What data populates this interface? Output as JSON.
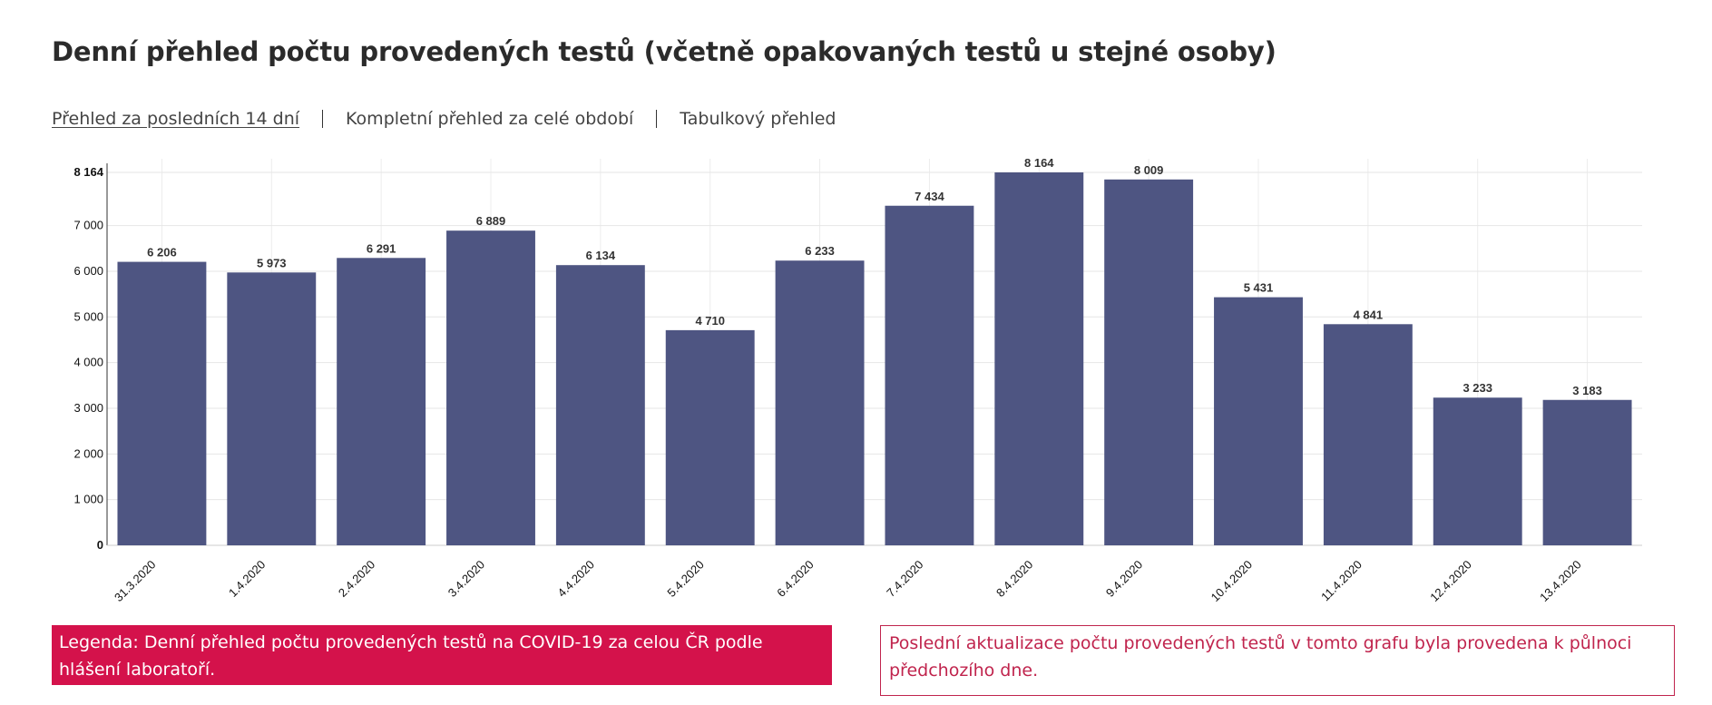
{
  "page": {
    "title": "Denní přehled počtu provedených testů (včetně opakovaných testů u stejné osoby)"
  },
  "tabs": [
    {
      "label": "Přehled za posledních 14 dní",
      "active": true
    },
    {
      "label": "Kompletní přehled za celé období",
      "active": false
    },
    {
      "label": "Tabulkový přehled",
      "active": false
    }
  ],
  "legend": {
    "text": "Legenda: Denní přehled počtu provedených testů na COVID-19 za celou ČR podle hlášení laboratoří."
  },
  "update_note": {
    "text": "Poslední aktualizace počtu provedených testů v tomto grafu byla provedena k půlnoci předchozího dne."
  },
  "colors": {
    "bar": "#4e5582",
    "legend_bg": "#d4124b",
    "update_text": "#c0244d"
  },
  "chart_data": {
    "type": "bar",
    "title": "",
    "xlabel": "",
    "ylabel": "",
    "categories": [
      "31.3.2020",
      "1.4.2020",
      "2.4.2020",
      "3.4.2020",
      "4.4.2020",
      "5.4.2020",
      "6.4.2020",
      "7.4.2020",
      "8.4.2020",
      "9.4.2020",
      "10.4.2020",
      "11.4.2020",
      "12.4.2020",
      "13.4.2020"
    ],
    "values": [
      6206,
      5973,
      6291,
      6889,
      6134,
      4710,
      6233,
      7434,
      8164,
      8009,
      5431,
      4841,
      3233,
      3183
    ],
    "value_labels": [
      "6 206",
      "5 973",
      "6 291",
      "6 889",
      "6 134",
      "4 710",
      "6 233",
      "7 434",
      "8 164",
      "8 009",
      "5 431",
      "4 841",
      "3 233",
      "3 183"
    ],
    "ylim": [
      0,
      8164
    ],
    "yticks": [
      0,
      1000,
      2000,
      3000,
      4000,
      5000,
      6000,
      7000,
      8164
    ],
    "ytick_labels": [
      "0",
      "1 000",
      "2 000",
      "3 000",
      "4 000",
      "5 000",
      "6 000",
      "7 000",
      "8 164"
    ],
    "grid": true,
    "legend": "none"
  }
}
